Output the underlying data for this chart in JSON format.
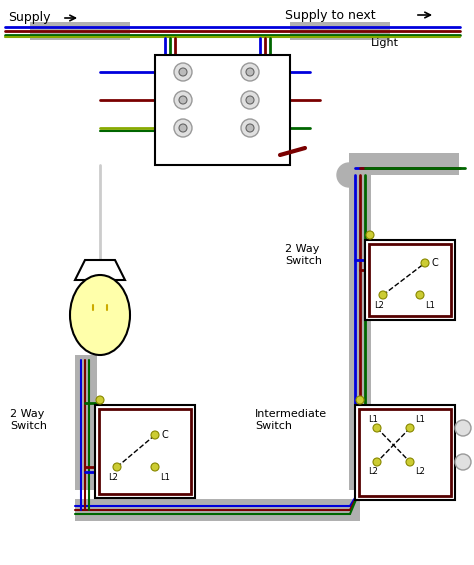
{
  "bg_color": "#ffffff",
  "wire_blue": "#0000dd",
  "wire_brown": "#7a0000",
  "wire_green": "#006600",
  "wire_yg": "#88aa00",
  "wire_gray": "#aaaaaa",
  "conduit_color": "#b0b0b0",
  "jbox_color": "#ffffff",
  "switch_bg": "#ffffff",
  "terminal_color": "#cccc33",
  "terminal_edge": "#888800",
  "black": "#000000",
  "white": "#ffffff",
  "bulb_yellow": "#ffffaa",
  "supply_left_label": "Supply",
  "supply_right_label": "Supply to next",
  "light_label": "Light",
  "sw1_label": "2 Way\nSwitch",
  "sw2_label": "2 Way\nSwitch",
  "int_label": "Intermediate\nSwitch",
  "fig_w": 4.74,
  "fig_h": 5.65,
  "dpi": 100
}
